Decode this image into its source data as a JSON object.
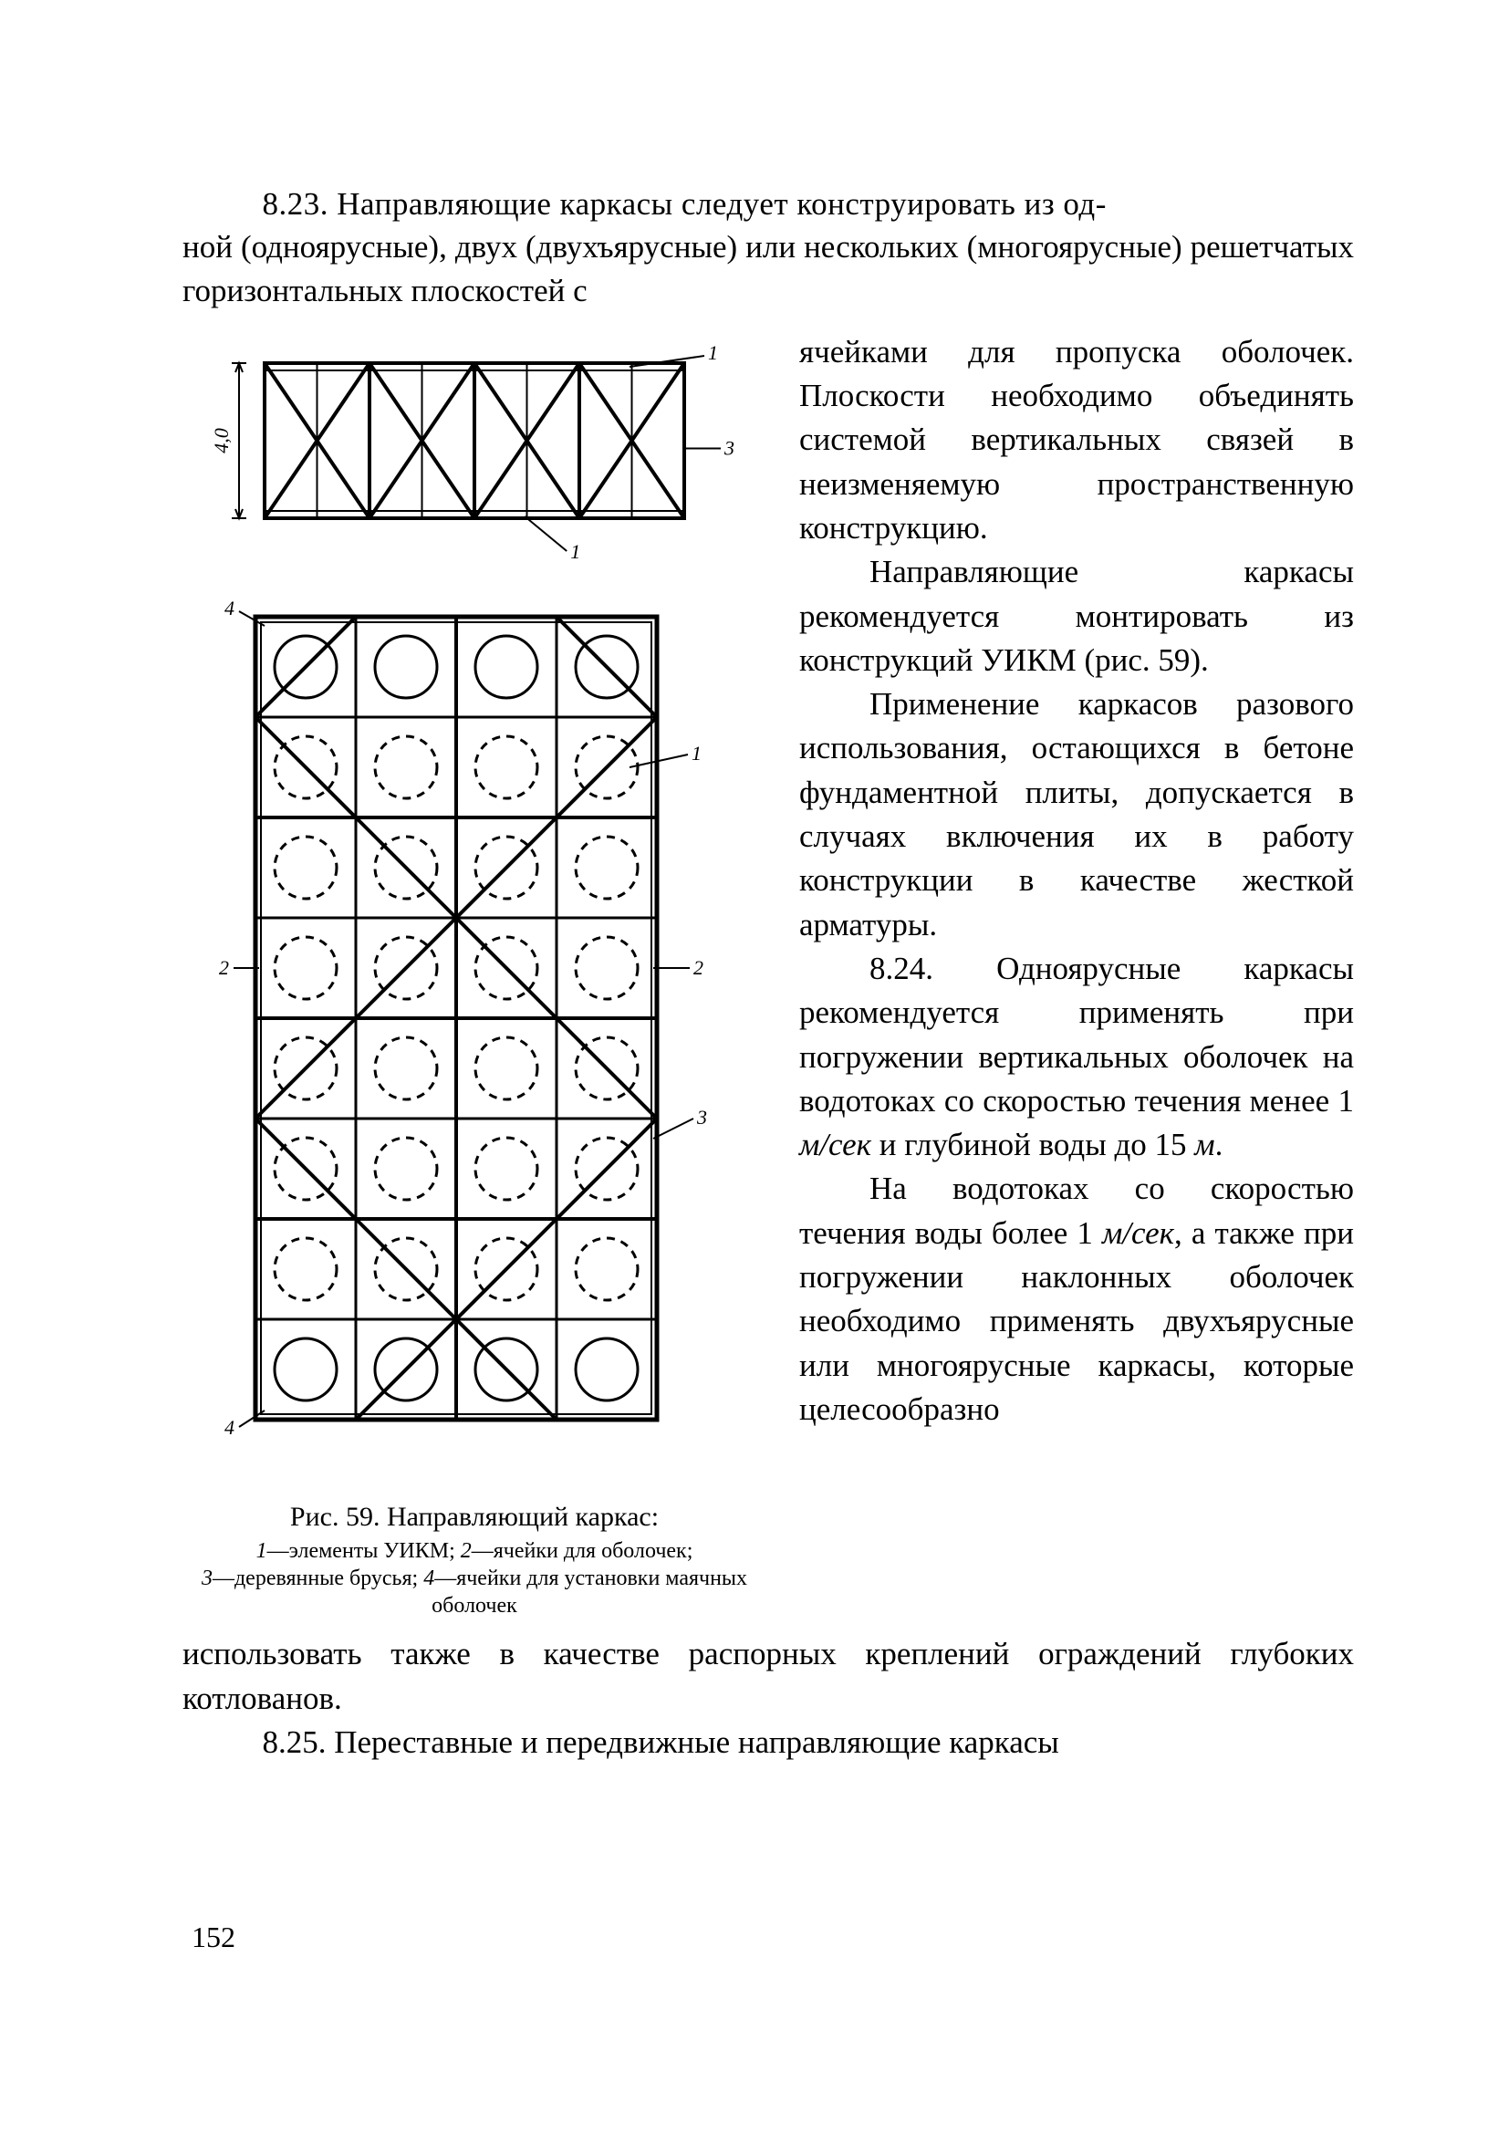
{
  "intro_line1": "8.23. Направляющие каркасы следует конструировать из од-",
  "intro_line2": "ной (одноярусные), двух (двухъярусные) или нескольких (многоярусные) решетчатых горизонтальных плоскостей с",
  "right": {
    "p1": "ячейками для пропуска оболочек. Плоскости необходимо объединять системой вертикальных связей в неизменяемую пространственную конструкцию.",
    "p2": "Направляющие каркасы рекомендуется монтировать из конструкций УИКМ (рис. 59).",
    "p3": "Применение каркасов разового использования, остающихся в бетоне фундаментной плиты, допускается в случаях включения их в работу конструкции в качестве жесткой арматуры.",
    "p4a": "8.24. Одноярусные каркасы рекомендуется применять при погружении вертикальных оболочек на водотоках со скоростью течения менее 1 ",
    "p4b": "м/сек",
    "p4c": " и глубиной воды до 15 ",
    "p4d": "м",
    "p4e": ".",
    "p5a": "На водотоках со скоростью течения воды более 1 ",
    "p5b": "м/сек",
    "p5c": ", а также при погружении наклонных оболочек необходимо применять двухъярусные или многоярусные каркасы, которые целесообразно"
  },
  "after": {
    "p1": "использовать также в качестве распорных креплений ограждений глубоких котлованов.",
    "p2": "8.25. Переставные и передвижные направляющие каркасы"
  },
  "caption_main": "Рис. 59. Направляющий каркас:",
  "caption_sub_a": "1",
  "caption_sub_b": "—элементы УИКМ; ",
  "caption_sub_c": "2",
  "caption_sub_d": "—ячейки для оболочек; ",
  "caption_sub_e": "3",
  "caption_sub_f": "—деревянные брусья; ",
  "caption_sub_g": "4",
  "caption_sub_h": "—ячейки для установки маячных оболочек",
  "page_number": "152",
  "figure": {
    "stroke": "#000000",
    "thin": 2,
    "thick": 4,
    "circle_r": 34,
    "dash": "9,7",
    "dim_label": "4,0",
    "labels": {
      "top": {
        "1a": "1",
        "1b": "1",
        "3": "3"
      },
      "bottom": {
        "1": "1",
        "2a": "2",
        "2b": "2",
        "3": "3",
        "4a": "4",
        "4b": "4"
      }
    },
    "font_size_small": 22,
    "font_family": "Times New Roman, serif"
  }
}
